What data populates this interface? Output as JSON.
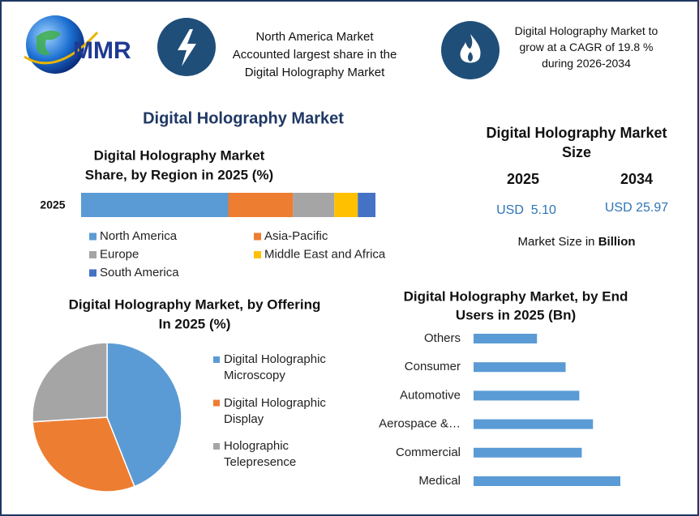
{
  "header": {
    "logo": "MMR",
    "box1": [
      "North America Market",
      "Accounted largest share in the",
      "Digital Holography Market"
    ],
    "box2": [
      "Digital Holography Market to",
      "grow at a CAGR of 19.8 %",
      "during 2026-2034"
    ]
  },
  "title": "Digital Holography Market",
  "market_size": {
    "title": "Digital Holography Market Size",
    "years": [
      "2025",
      "2034"
    ],
    "values": [
      "USD  5.10",
      "USD 25.97"
    ],
    "note": "Market Size in ",
    "note_unit": "Billion"
  },
  "chart_data": [
    {
      "type": "stacked_bar",
      "title": [
        "Digital Holography Market",
        "Share, by Region in 2025 (%)"
      ],
      "categories": [
        "2025"
      ],
      "series": [
        {
          "name": "North America",
          "color": "#5b9bd5",
          "values": [
            50
          ]
        },
        {
          "name": "Asia-Pacific",
          "color": "#ed7d31",
          "values": [
            22
          ]
        },
        {
          "name": "Europe",
          "color": "#a5a5a5",
          "values": [
            14
          ]
        },
        {
          "name": "Middle East and Africa",
          "color": "#ffc000",
          "values": [
            8
          ]
        },
        {
          "name": "South America",
          "color": "#4472c4",
          "values": [
            6
          ]
        }
      ]
    },
    {
      "type": "pie",
      "title": [
        "Digital Holography Market, by Offering",
        "In 2025 (%)"
      ],
      "categories": [
        "Digital Holographic Microscopy",
        "Digital Holographic Display",
        "Holographic Telepresence"
      ],
      "values": [
        44,
        30,
        26
      ],
      "colors": [
        "#5b9bd5",
        "#ed7d31",
        "#a5a5a5"
      ]
    },
    {
      "type": "hbar",
      "title": [
        "Digital Holography Market, by  End",
        "Users in 2025 (Bn)"
      ],
      "categories": [
        "Others",
        "Consumer",
        "Automotive",
        "Aerospace &…",
        "Commercial",
        "Medical"
      ],
      "values": [
        0.51,
        0.74,
        0.85,
        0.96,
        0.87,
        1.18
      ],
      "color": "#5b9bd5"
    }
  ]
}
